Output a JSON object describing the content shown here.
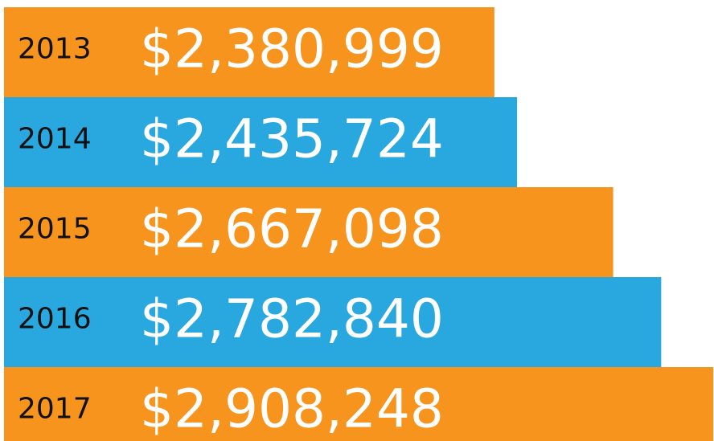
{
  "chart_data": {
    "type": "bar",
    "orientation": "horizontal",
    "categories": [
      "2013",
      "2014",
      "2015",
      "2016",
      "2017"
    ],
    "values": [
      2380999,
      2435724,
      2667098,
      2782840,
      2908248
    ],
    "value_labels": [
      "$2,380,999",
      "$2,435,724",
      "$2,667,098",
      "$2,782,840",
      "$2,908,248"
    ],
    "colors": [
      "#f7941d",
      "#29a8e0",
      "#f7941d",
      "#29a8e0",
      "#f7941d"
    ],
    "xlim": [
      1200000,
      2910000
    ]
  }
}
